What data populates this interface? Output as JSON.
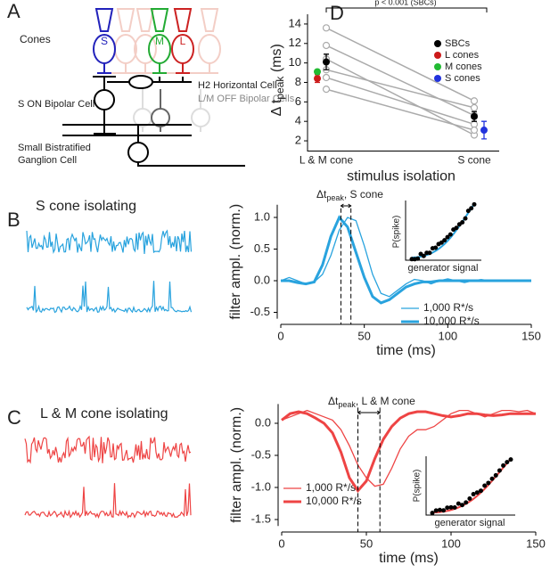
{
  "panels": [
    "A",
    "B",
    "C",
    "D"
  ],
  "diagram": {
    "cones": "Cones",
    "cone_labels": [
      "S",
      "M",
      "L"
    ],
    "bipolar": "S ON Bipolar Cell",
    "horizontal": "H2 Horizontal Cell",
    "off_bipolar": "L/M OFF Bipolar Cells",
    "ganglion": [
      "Small Bistratified",
      "Ganglion Cell"
    ]
  },
  "traces": {
    "b_title": "S cone isolating",
    "c_title": "L & M cone isolating"
  },
  "insets": {
    "ylabel": "P(spike)",
    "xlabel": "generator signal"
  },
  "chart_data": [
    {
      "type": "dot",
      "ylabel": [
        "Δ t",
        "peak",
        " (ms)"
      ],
      "xlabel": "stimulus isolation",
      "categories": [
        "L & M cone",
        "S cone"
      ],
      "ylim": [
        1.5,
        15
      ],
      "yticks": [
        2,
        4,
        6,
        8,
        10,
        12,
        14
      ],
      "annotation": "p < 0.001 (SBCs)",
      "cells_color": "#aaaaaa",
      "cells": [
        [
          13.6,
          6.1
        ],
        [
          11.8,
          4.6
        ],
        [
          10.4,
          2.6
        ],
        [
          9.3,
          5.4
        ],
        [
          8.5,
          3.7
        ],
        [
          7.3,
          3.1
        ]
      ],
      "series": [
        {
          "name": "SBCs",
          "color": "#000000",
          "values": [
            10.1,
            4.5
          ],
          "errors": [
            0.8,
            0.5
          ]
        },
        {
          "name": "L cones",
          "color": "#cc1a1a",
          "values": [
            8.4,
            null
          ],
          "errors": [
            0.4,
            null
          ]
        },
        {
          "name": "M cones",
          "color": "#22bb33",
          "values": [
            9.1,
            null
          ],
          "errors": [
            null,
            null
          ]
        },
        {
          "name": "S cones",
          "color": "#2233dd",
          "values": [
            null,
            3.1
          ],
          "errors": [
            null,
            0.9
          ]
        }
      ]
    },
    {
      "type": "line",
      "ylabel": "filter ampl. (norm.)",
      "xlabel": "time (ms)",
      "xlim": [
        0,
        150
      ],
      "xticks": [
        0,
        50,
        100,
        150
      ],
      "ylim": [
        -0.6,
        1.2
      ],
      "yticks": [
        {
          "value": 1.0,
          "label": "1.0"
        },
        0.5,
        {
          "value": 0,
          "label": "0.0"
        },
        -0.5
      ],
      "annotation": [
        "Δt",
        "peak",
        ", S cone"
      ],
      "markers": [
        36,
        42
      ],
      "x": [
        0,
        5,
        10,
        15,
        20,
        25,
        30,
        35,
        40,
        45,
        50,
        55,
        60,
        65,
        70,
        75,
        80,
        85,
        90,
        95,
        100,
        105,
        110,
        115,
        120,
        125,
        130,
        135,
        140,
        145,
        150
      ],
      "series": [
        {
          "name": "1,000 R*/s",
          "color": "#29a3de",
          "linewidth": 1.3,
          "values": [
            0,
            0.05,
            0,
            -0.05,
            -0.02,
            0.1,
            0.4,
            0.8,
            1.0,
            0.95,
            0.55,
            0.1,
            -0.2,
            -0.25,
            -0.15,
            -0.05,
            0.02,
            0,
            -0.05,
            0,
            0.03,
            0,
            -0.03,
            0,
            0.02,
            0,
            0,
            0,
            0,
            0,
            0
          ]
        },
        {
          "name": "10,000 R*/s",
          "color": "#29a3de",
          "linewidth": 3,
          "values": [
            0,
            0,
            -0.03,
            -0.05,
            -0.02,
            0.25,
            0.7,
            1.0,
            0.85,
            0.45,
            0.05,
            -0.25,
            -0.35,
            -0.3,
            -0.2,
            -0.1,
            -0.05,
            -0.02,
            -0.02,
            0,
            0,
            0,
            0,
            0,
            0,
            0,
            0,
            0,
            0,
            0,
            0
          ]
        }
      ]
    },
    {
      "type": "line",
      "ylabel": "filter ampl. (norm.)",
      "xlabel": "time (ms)",
      "xlim": [
        0,
        150
      ],
      "xticks": [
        0,
        50,
        100,
        150
      ],
      "ylim": [
        -1.6,
        0.3
      ],
      "yticks": [
        {
          "value": 0,
          "label": "0.0"
        },
        -0.5,
        {
          "value": -1.0,
          "label": "-1.0"
        },
        -1.5
      ],
      "annotation": [
        "Δt",
        "peak",
        ", L & M cone"
      ],
      "markers": [
        45,
        58
      ],
      "x": [
        0,
        5,
        10,
        15,
        20,
        25,
        30,
        35,
        40,
        45,
        50,
        55,
        60,
        65,
        70,
        75,
        80,
        85,
        90,
        95,
        100,
        105,
        110,
        115,
        120,
        125,
        130,
        135,
        140,
        145,
        150
      ],
      "series": [
        {
          "name": "1,000 R*/s",
          "color": "#ee4444",
          "linewidth": 1.3,
          "values": [
            0.05,
            0.1,
            0.15,
            0.2,
            0.15,
            0.1,
            0.05,
            -0.1,
            -0.35,
            -0.65,
            -0.85,
            -0.98,
            -0.95,
            -0.7,
            -0.4,
            -0.2,
            -0.1,
            -0.1,
            -0.05,
            0.05,
            0.15,
            0.2,
            0.2,
            0.15,
            0.1,
            0.15,
            0.2,
            0.2,
            0.18,
            0.2,
            0.15
          ]
        },
        {
          "name": "10,000 R*/s",
          "color": "#ee4444",
          "linewidth": 3,
          "values": [
            0.05,
            0.15,
            0.18,
            0.15,
            0.08,
            0,
            -0.15,
            -0.45,
            -0.85,
            -1.05,
            -0.9,
            -0.55,
            -0.25,
            -0.05,
            0.08,
            0.15,
            0.18,
            0.18,
            0.15,
            0.12,
            0.1,
            0.12,
            0.15,
            0.15,
            0.13,
            0.12,
            0.13,
            0.15,
            0.15,
            0.15,
            0.15
          ]
        }
      ]
    }
  ]
}
